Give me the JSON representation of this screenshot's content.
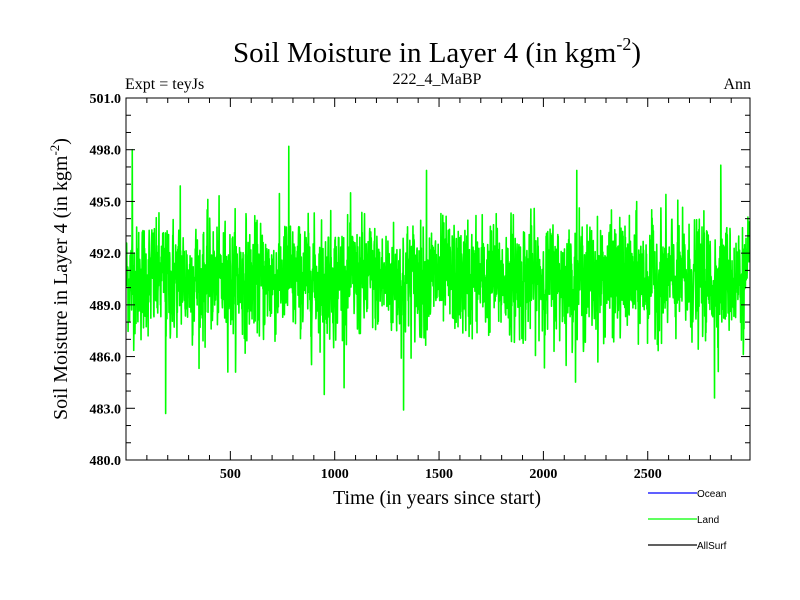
{
  "chart_data": {
    "type": "line",
    "title_main": "Soil Moisture in Layer 4 (in kgm",
    "title_sup": "-2",
    "title_close": ")",
    "subtitle_left": "Expt = teyJs",
    "subtitle_center": "222_4_MaBP",
    "subtitle_right": "Ann",
    "xlabel": "Time (in years since start)",
    "ylabel_main": "Soil Moisture in Layer 4 (in kgm",
    "ylabel_sup": "-2",
    "ylabel_close": ")",
    "xlim": [
      0,
      2990
    ],
    "ylim": [
      480.0,
      501.0
    ],
    "xticks": [
      500,
      1000,
      1500,
      2000,
      2500
    ],
    "xtick_labels": [
      "500",
      "1000",
      "1500",
      "2000",
      "2500"
    ],
    "yticks": [
      480.0,
      483.0,
      486.0,
      489.0,
      492.0,
      495.0,
      498.0,
      501.0
    ],
    "ytick_labels": [
      "480.0",
      "483.0",
      "486.0",
      "489.0",
      "492.0",
      "495.0",
      "498.0",
      "501.0"
    ],
    "series": [
      {
        "name": "Land",
        "color": "#00ff00",
        "description": "annual values, approx. 2990 years",
        "mean": 490.5,
        "typical_range": [
          487.0,
          494.0
        ],
        "extremes": [
          {
            "x": 30,
            "y": 498.0
          },
          {
            "x": 190,
            "y": 482.7
          },
          {
            "x": 260,
            "y": 495.9
          },
          {
            "x": 780,
            "y": 498.2
          },
          {
            "x": 950,
            "y": 483.8
          },
          {
            "x": 1330,
            "y": 482.9
          },
          {
            "x": 1440,
            "y": 496.8
          },
          {
            "x": 2160,
            "y": 496.8
          },
          {
            "x": 2820,
            "y": 483.6
          },
          {
            "x": 2850,
            "y": 497.1
          }
        ]
      }
    ],
    "legend": {
      "placement": "bottom-right",
      "entries": [
        {
          "label": "Ocean",
          "color": "#0000ff"
        },
        {
          "label": "Land",
          "color": "#00ff00"
        },
        {
          "label": "AllSurf",
          "color": "#000000"
        }
      ]
    }
  }
}
